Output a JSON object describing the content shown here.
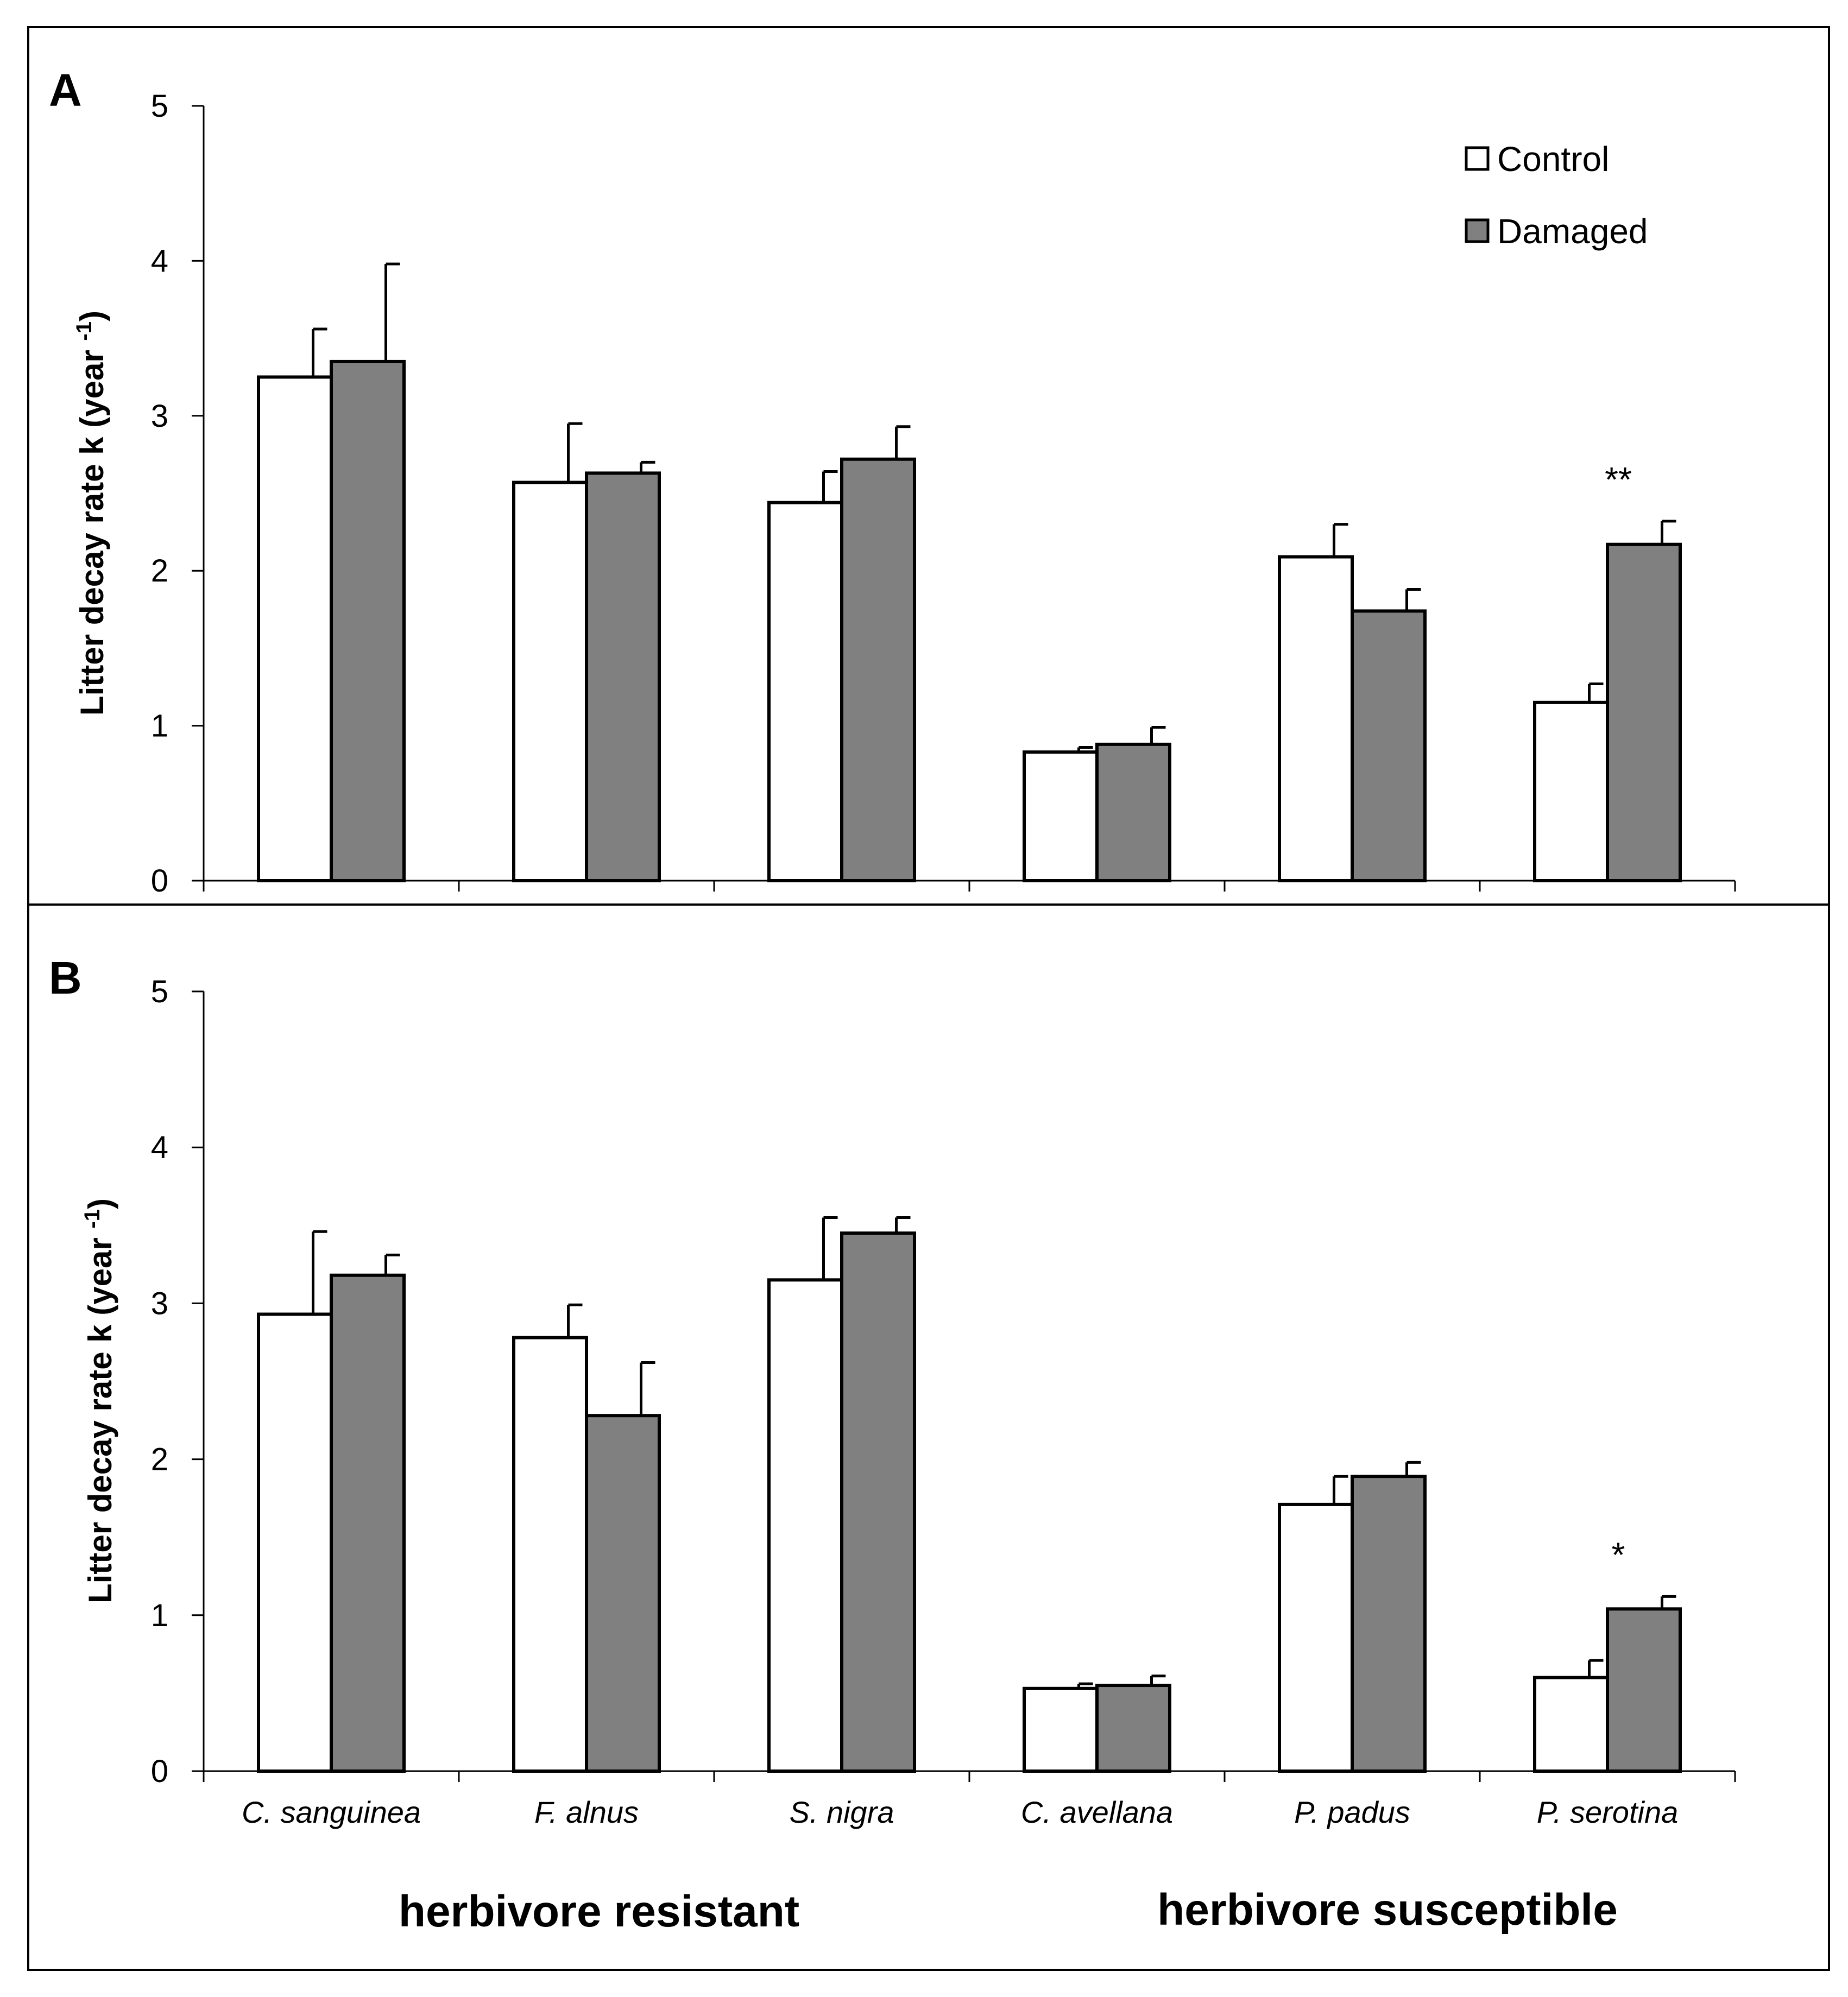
{
  "chart_data": [
    {
      "panel": "A",
      "type": "bar",
      "ylabel": "Litter decay rate k (year -1)",
      "ylim": [
        0,
        5
      ],
      "yticks": [
        "0",
        "1",
        "2",
        "3",
        "4",
        "5"
      ],
      "categories": [
        "C. sanguinea",
        "F. alnus",
        "S. nigra",
        "C. avellana",
        "P. padus",
        "P. serotina"
      ],
      "series": [
        {
          "name": "Control",
          "color": "#ffffff",
          "values": [
            3.25,
            2.57,
            2.44,
            0.83,
            2.09,
            1.15
          ],
          "errors": [
            0.31,
            0.38,
            0.2,
            0.03,
            0.21,
            0.12
          ]
        },
        {
          "name": "Damaged",
          "color": "#808080",
          "values": [
            3.35,
            2.63,
            2.72,
            0.88,
            1.74,
            2.17
          ],
          "errors": [
            0.63,
            0.07,
            0.21,
            0.11,
            0.14,
            0.15
          ]
        }
      ],
      "annotations": [
        {
          "category": "P. serotina",
          "text": "**"
        }
      ],
      "legend": "top-right",
      "grid": false
    },
    {
      "panel": "B",
      "type": "bar",
      "ylabel": "Litter decay rate k (year -1)",
      "ylim": [
        0,
        5
      ],
      "yticks": [
        "0",
        "1",
        "2",
        "3",
        "4",
        "5"
      ],
      "categories": [
        "C. sanguinea",
        "F. alnus",
        "S. nigra",
        "C. avellana",
        "P. padus",
        "P. serotina"
      ],
      "series": [
        {
          "name": "Control",
          "color": "#ffffff",
          "values": [
            2.93,
            2.78,
            3.15,
            0.53,
            1.71,
            0.6
          ],
          "errors": [
            0.53,
            0.21,
            0.4,
            0.03,
            0.18,
            0.11
          ]
        },
        {
          "name": "Damaged",
          "color": "#808080",
          "values": [
            3.18,
            2.28,
            3.45,
            0.55,
            1.89,
            1.04
          ],
          "errors": [
            0.13,
            0.34,
            0.1,
            0.06,
            0.09,
            0.08
          ]
        }
      ],
      "annotations": [
        {
          "category": "P. serotina",
          "text": "*"
        }
      ],
      "grid": false
    }
  ],
  "labels": {
    "panel_a": "A",
    "panel_b": "B",
    "ylabel_main": "Litter decay rate k (year ",
    "ylabel_sup": "-1",
    "ylabel_close": ")",
    "legend_control": "Control",
    "legend_damaged": "Damaged",
    "group_resistant": "herbivore resistant",
    "group_susceptible": "herbivore susceptible"
  }
}
